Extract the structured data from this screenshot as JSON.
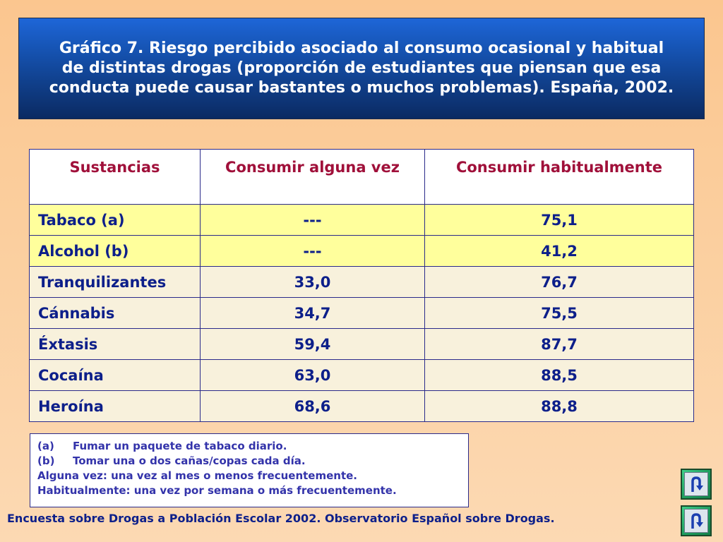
{
  "title": "Gráfico 7. Riesgo percibido asociado al consumo ocasional y habitual de distintas drogas (proporción de estudiantes que piensan que esa conducta puede causar bastantes o muchos problemas). España, 2002.",
  "table": {
    "headers": [
      "Sustancias",
      "Consumir alguna vez",
      "Consumir habitualmente"
    ],
    "rows": [
      {
        "name": "Tabaco (a)",
        "alguna_vez": "---",
        "habitualmente": "75,1"
      },
      {
        "name": "Alcohol (b)",
        "alguna_vez": "---",
        "habitualmente": "41,2"
      },
      {
        "name": "Tranquilizantes",
        "alguna_vez": "33,0",
        "habitualmente": "76,7"
      },
      {
        "name": "Cánnabis",
        "alguna_vez": "34,7",
        "habitualmente": "75,5"
      },
      {
        "name": "Éxtasis",
        "alguna_vez": "59,4",
        "habitualmente": "87,7"
      },
      {
        "name": "Cocaína",
        "alguna_vez": "63,0",
        "habitualmente": "88,5"
      },
      {
        "name": "Heroína",
        "alguna_vez": "68,6",
        "habitualmente": "88,8"
      }
    ]
  },
  "notes": {
    "footnotes": [
      {
        "mark": "(a)",
        "text": "Fumar un paquete de tabaco diario."
      },
      {
        "mark": "(b)",
        "text": "Tomar una o dos cañas/copas cada día."
      }
    ],
    "definitions": [
      "Alguna vez: una vez al mes o menos frecuentemente.",
      "Habitualmente: una vez por semana o más frecuentemente."
    ]
  },
  "source": "Encuesta sobre Drogas a Población Escolar 2002. Observatorio Español sobre Drogas.",
  "nav": {
    "icons": [
      "return-arrow-icon",
      "return-arrow-icon"
    ]
  },
  "colors": {
    "title_bg": "#1654b4",
    "header_text": "#a0103a",
    "body_text": "#0d1f8a",
    "highlight_row": "#ffff9c",
    "normal_row": "#f8f1dc",
    "nav_button": "#1fa060"
  }
}
